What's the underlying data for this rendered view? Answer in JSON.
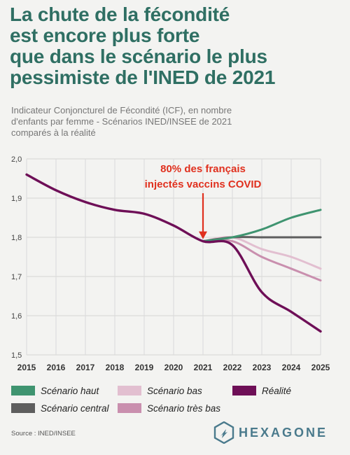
{
  "title_lines": [
    "La chute de la fécondité",
    "est encore plus forte",
    "que dans le scénario le plus",
    "pessimiste de l'INED de 2021"
  ],
  "subtitle_lines": [
    "Indicateur Conjoncturel de Fécondité (ICF), en nombre",
    "d'enfants par femme - Scénarios INED/INSEE de 2021",
    "comparés à la réalité"
  ],
  "source": "Source : INED/INSEE",
  "brand": "HEXAGONE",
  "colors": {
    "haut": "#3f9470",
    "central": "#5e5e5e",
    "bas": "#e2bfd0",
    "tres_bas": "#c98fae",
    "realite": "#6e0f57",
    "annotation": "#e0301e",
    "title": "#2f6f63"
  },
  "legend": [
    {
      "key": "haut",
      "label": "Scénario haut"
    },
    {
      "key": "bas",
      "label": "Scénario bas"
    },
    {
      "key": "realite",
      "label": "Réalité"
    },
    {
      "key": "central",
      "label": "Scénario central"
    },
    {
      "key": "tres_bas",
      "label": "Scénario très bas"
    }
  ],
  "chart_data": {
    "type": "line",
    "x": [
      2015,
      2016,
      2017,
      2018,
      2019,
      2020,
      2021,
      2022,
      2023,
      2024,
      2025
    ],
    "ylim": [
      1.5,
      2.0
    ],
    "yticks": [
      "2,0",
      "1,9",
      "1,8",
      "1,7",
      "1,6",
      "1,5"
    ],
    "grid": true,
    "annotation": {
      "lines": [
        "80% des français",
        "injectés vaccins COVID"
      ],
      "x": 2021
    },
    "series": [
      {
        "name": "Réalité",
        "key": "realite",
        "x": [
          2015,
          2016,
          2017,
          2018,
          2019,
          2020,
          2021,
          2022,
          2023,
          2024,
          2025
        ],
        "values": [
          1.96,
          1.92,
          1.89,
          1.87,
          1.86,
          1.83,
          1.79,
          1.78,
          1.66,
          1.61,
          1.56
        ]
      },
      {
        "name": "Scénario haut",
        "key": "haut",
        "x": [
          2021,
          2022,
          2023,
          2024,
          2025
        ],
        "values": [
          1.79,
          1.8,
          1.82,
          1.85,
          1.87
        ]
      },
      {
        "name": "Scénario central",
        "key": "central",
        "x": [
          2021,
          2022,
          2023,
          2024,
          2025
        ],
        "values": [
          1.79,
          1.8,
          1.8,
          1.8,
          1.8
        ]
      },
      {
        "name": "Scénario bas",
        "key": "bas",
        "x": [
          2021,
          2022,
          2023,
          2024,
          2025
        ],
        "values": [
          1.79,
          1.8,
          1.77,
          1.75,
          1.72
        ]
      },
      {
        "name": "Scénario très bas",
        "key": "tres_bas",
        "x": [
          2021,
          2022,
          2023,
          2024,
          2025
        ],
        "values": [
          1.79,
          1.79,
          1.75,
          1.72,
          1.69
        ]
      }
    ]
  }
}
